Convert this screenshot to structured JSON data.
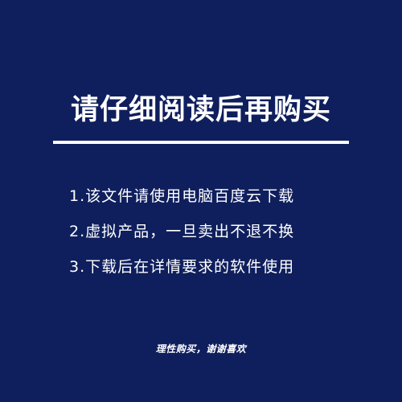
{
  "heading": "请仔细阅读后再购买",
  "colors": {
    "background": "#0f1f5d",
    "text": "#ffffff"
  },
  "items": [
    "1.该文件请使用电脑百度云下载",
    "2.虚拟产品，一旦卖出不退不换",
    "3.下载后在详情要求的软件使用"
  ],
  "footer": "理性购买，谢谢喜欢"
}
